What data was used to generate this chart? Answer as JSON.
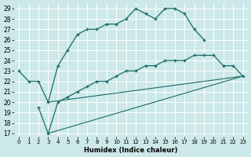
{
  "xlabel": "Humidex (Indice chaleur)",
  "bg_color": "#cce8e8",
  "grid_color": "#b0d8d8",
  "line_color": "#1a6a6a",
  "xlim_min": -0.5,
  "xlim_max": 23.5,
  "ylim_min": 16.7,
  "ylim_max": 29.5,
  "yticks": [
    17,
    18,
    19,
    20,
    21,
    22,
    23,
    24,
    25,
    26,
    27,
    28,
    29
  ],
  "xticks": [
    0,
    1,
    2,
    3,
    4,
    5,
    6,
    7,
    8,
    9,
    10,
    11,
    12,
    13,
    14,
    15,
    16,
    17,
    18,
    19,
    20,
    21,
    22,
    23
  ],
  "curve1_x": [
    0,
    1,
    2,
    3,
    4,
    5,
    6,
    7,
    8,
    9,
    10,
    11,
    12,
    13,
    14,
    15,
    16,
    17,
    18,
    19
  ],
  "curve1_y": [
    23,
    22,
    22,
    20,
    23.5,
    25,
    26.5,
    27,
    27,
    27.5,
    27.5,
    28,
    29,
    28.5,
    28,
    29,
    29,
    28.5,
    27,
    26
  ],
  "curve2_x": [
    2,
    3,
    4,
    5,
    6,
    7,
    8,
    9,
    10,
    11,
    12,
    13,
    14,
    15,
    16,
    17,
    18,
    19,
    20,
    21,
    22,
    23
  ],
  "curve2_y": [
    19.5,
    17,
    20,
    20.5,
    21,
    21.5,
    22,
    22,
    22.5,
    23,
    23,
    23.5,
    23.5,
    24,
    24,
    24,
    24.5,
    24.5,
    24.5,
    23.5,
    23.5,
    22.5
  ],
  "line1_x": [
    3,
    23
  ],
  "line1_y": [
    17,
    22.5
  ],
  "line2_x": [
    3,
    23
  ],
  "line2_y": [
    20,
    22.5
  ]
}
